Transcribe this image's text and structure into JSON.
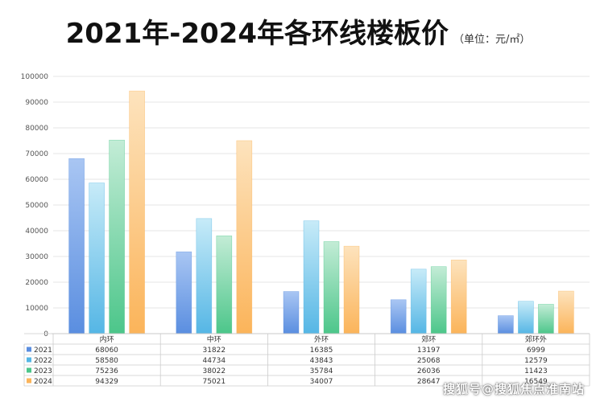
{
  "title": "2021年-2024年各环线楼板价",
  "unit": "（单位：元/㎡）",
  "watermark": "搜狐号@搜狐焦点淮南站",
  "colors": {
    "s2021": [
      "#a9c6f3",
      "#5a8ee0"
    ],
    "s2022": [
      "#c7ebf8",
      "#55b6e5"
    ],
    "s2023": [
      "#c3ecd6",
      "#4cc68a"
    ],
    "s2024": [
      "#fde3bd",
      "#fbb45a"
    ]
  },
  "chart_data": {
    "type": "bar",
    "categories": [
      "内环",
      "中环",
      "外环",
      "郊环",
      "郊环外"
    ],
    "series": [
      {
        "name": "2021",
        "values": [
          68060,
          31822,
          16385,
          13197,
          6999
        ]
      },
      {
        "name": "2022",
        "values": [
          58580,
          44734,
          43843,
          25068,
          12579
        ]
      },
      {
        "name": "2023",
        "values": [
          75236,
          38022,
          35784,
          26036,
          11423
        ]
      },
      {
        "name": "2024",
        "values": [
          94329,
          75021,
          34007,
          28647,
          16549
        ]
      }
    ],
    "ylim": [
      0,
      100000
    ],
    "yticks": [
      0,
      10000,
      20000,
      30000,
      40000,
      50000,
      60000,
      70000,
      80000,
      90000,
      100000
    ],
    "grid": true,
    "legend": "data-table-bottom"
  }
}
